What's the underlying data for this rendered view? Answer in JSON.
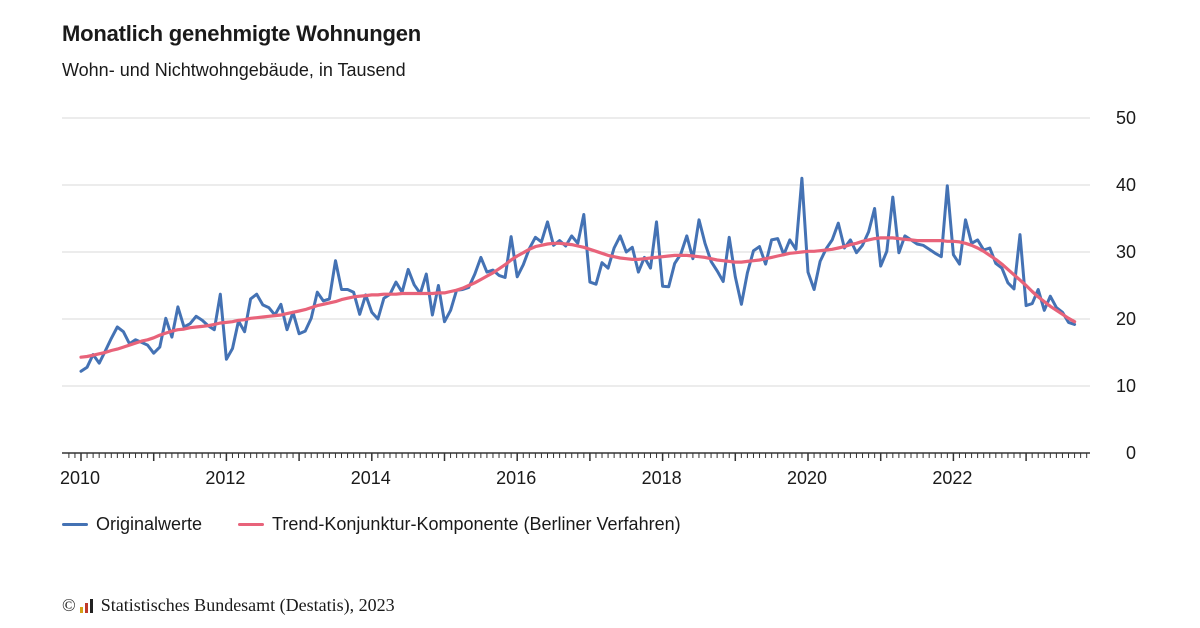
{
  "colors": {
    "original": "#4472b4",
    "trend": "#e8637a",
    "grid": "#d9d9d9",
    "axis": "#333333",
    "logo": [
      "#d4a017",
      "#c0392b",
      "#222222"
    ]
  },
  "legend": {
    "original_label": "Originalwerte",
    "trend_label": "Trend-Konjunktur-Komponente (Berliner Verfahren)"
  },
  "source": {
    "copyright_symbol": "©",
    "logo_icon": "destatis-logo-icon",
    "text": "Statistisches Bundesamt (Destatis), 2023"
  },
  "chart_data": {
    "type": "line",
    "title": "Monatlich genehmigte Wohnungen",
    "subtitle": "Wohn- und Nichtwohngebäude, in Tausend",
    "xlabel": "",
    "ylabel": "",
    "xlim": [
      2010,
      2023.75
    ],
    "ylim": [
      0,
      50
    ],
    "y_ticks": [
      0,
      10,
      20,
      30,
      40,
      50
    ],
    "x_ticks": [
      2010,
      2012,
      2014,
      2016,
      2018,
      2020,
      2022
    ],
    "y_axis_position": "right",
    "grid": true,
    "legend_position": "bottom-left",
    "x_interval": "monthly, starting January 2010",
    "series": [
      {
        "name": "Originalwerte",
        "values": [
          12.2,
          12.8,
          14.7,
          13.4,
          15.2,
          17.1,
          18.8,
          18.1,
          16.3,
          16.9,
          16.5,
          16.1,
          14.9,
          15.8,
          20.1,
          17.3,
          21.8,
          18.8,
          19.3,
          20.4,
          19.8,
          19.0,
          18.4,
          23.7,
          14.0,
          15.6,
          19.7,
          18.1,
          23.0,
          23.7,
          22.1,
          21.7,
          20.6,
          22.2,
          18.4,
          21.0,
          17.8,
          18.2,
          20.1,
          24.0,
          22.7,
          23.0,
          28.7,
          24.4,
          24.4,
          24.0,
          20.7,
          23.6,
          21.0,
          20.0,
          23.1,
          23.7,
          25.5,
          24.0,
          27.4,
          25.1,
          23.8,
          26.7,
          20.6,
          25.0,
          19.6,
          21.3,
          24.3,
          24.4,
          24.7,
          26.7,
          29.2,
          27.0,
          27.3,
          26.5,
          26.2,
          32.3,
          26.3,
          28.1,
          30.5,
          32.2,
          31.5,
          34.5,
          31.0,
          31.7,
          30.9,
          32.4,
          31.3,
          35.6,
          25.5,
          25.2,
          28.4,
          27.6,
          30.6,
          32.4,
          30.0,
          30.7,
          27.0,
          29.2,
          27.6,
          34.5,
          24.9,
          24.8,
          28.3,
          29.7,
          32.4,
          29.0,
          34.8,
          31.3,
          28.6,
          27.2,
          25.6,
          32.2,
          26.3,
          22.2,
          26.9,
          30.2,
          30.8,
          28.2,
          31.8,
          32.0,
          29.6,
          31.8,
          30.4,
          41.0,
          27.0,
          24.4,
          28.6,
          30.5,
          31.8,
          34.3,
          30.6,
          31.8,
          29.9,
          31.0,
          33.0,
          36.5,
          27.9,
          30.1,
          38.2,
          29.9,
          32.4,
          31.8,
          31.2,
          31.0,
          30.4,
          29.8,
          29.3,
          39.9,
          29.6,
          28.2,
          34.8,
          31.3,
          31.8,
          30.3,
          30.6,
          28.3,
          27.6,
          25.4,
          24.5,
          32.6,
          22.0,
          22.3,
          24.4,
          21.3,
          23.4,
          21.7,
          21.0,
          19.5,
          19.2
        ]
      },
      {
        "name": "Trend-Konjunktur-Komponente (Berliner Verfahren)",
        "values": [
          14.3,
          14.4,
          14.6,
          14.8,
          15.0,
          15.3,
          15.5,
          15.8,
          16.1,
          16.4,
          16.7,
          16.9,
          17.2,
          17.6,
          17.9,
          18.2,
          18.4,
          18.5,
          18.7,
          18.8,
          18.9,
          19.0,
          19.2,
          19.4,
          19.5,
          19.6,
          19.8,
          19.9,
          20.1,
          20.2,
          20.3,
          20.4,
          20.5,
          20.6,
          20.8,
          21.0,
          21.2,
          21.4,
          21.7,
          22.0,
          22.2,
          22.4,
          22.6,
          22.9,
          23.1,
          23.3,
          23.4,
          23.5,
          23.6,
          23.6,
          23.7,
          23.7,
          23.7,
          23.8,
          23.8,
          23.8,
          23.8,
          23.8,
          23.8,
          23.9,
          23.9,
          24.1,
          24.3,
          24.6,
          25.0,
          25.4,
          25.9,
          26.4,
          26.9,
          27.5,
          28.1,
          28.8,
          29.4,
          29.9,
          30.4,
          30.8,
          31.0,
          31.2,
          31.3,
          31.3,
          31.2,
          31.1,
          30.9,
          30.7,
          30.4,
          30.1,
          29.8,
          29.5,
          29.3,
          29.1,
          29.0,
          28.9,
          28.9,
          29.0,
          29.1,
          29.2,
          29.3,
          29.4,
          29.5,
          29.5,
          29.5,
          29.4,
          29.3,
          29.2,
          29.0,
          28.8,
          28.7,
          28.6,
          28.5,
          28.5,
          28.6,
          28.7,
          28.8,
          29.0,
          29.2,
          29.4,
          29.6,
          29.8,
          29.9,
          30.0,
          30.1,
          30.1,
          30.2,
          30.3,
          30.4,
          30.6,
          30.8,
          31.1,
          31.3,
          31.6,
          31.8,
          32.0,
          32.1,
          32.1,
          32.1,
          32.0,
          31.9,
          31.8,
          31.7,
          31.7,
          31.7,
          31.7,
          31.7,
          31.6,
          31.6,
          31.5,
          31.3,
          31.0,
          30.6,
          30.1,
          29.5,
          28.9,
          28.2,
          27.4,
          26.6,
          25.8,
          25.0,
          24.1,
          23.3,
          22.6,
          21.9,
          21.3,
          20.7,
          20.1,
          19.6
        ]
      }
    ]
  }
}
